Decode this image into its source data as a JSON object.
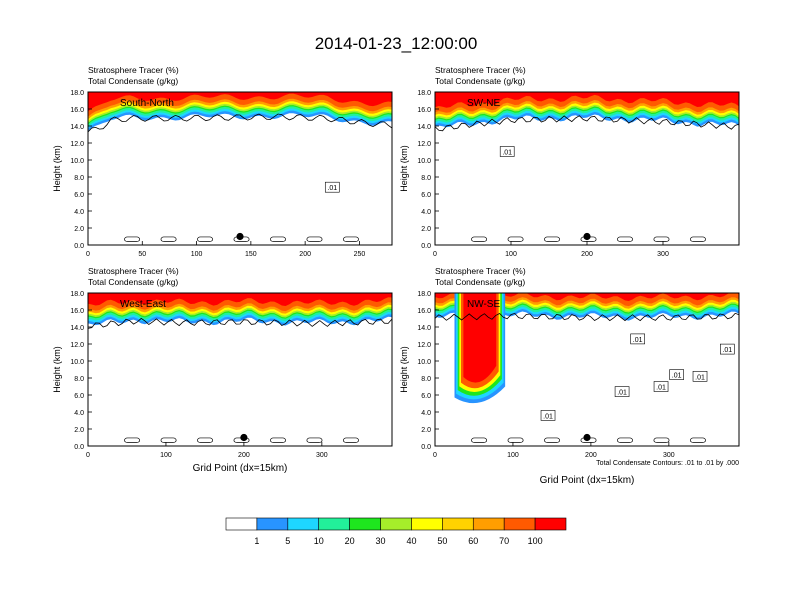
{
  "title": "2014-01-23_12:00:00",
  "colors": {
    "levels": [
      "#ffffff",
      "#2894ff",
      "#1ed6ff",
      "#22f09a",
      "#1ee61e",
      "#a6ee2a",
      "#ffff00",
      "#ffd200",
      "#ff9e00",
      "#ff5a00",
      "#ff0000"
    ],
    "contour": "#000000"
  },
  "chart_data": [
    {
      "type": "heatmap",
      "label": "South-North",
      "header": [
        "Stratosphere Tracer   (%)",
        "Total Condensate   (g/kg)"
      ],
      "ylabel": "Height (km)",
      "xlabel": "",
      "xlim": [
        0,
        280
      ],
      "xticks": [
        0,
        50,
        100,
        150,
        200,
        250
      ],
      "ylim": [
        0,
        18
      ],
      "yticks": [
        "0.0",
        "2.0",
        "4.0",
        "6.0",
        "8.0",
        "10.0",
        "12.0",
        "14.0",
        "16.0",
        "18.0"
      ],
      "tropopause_km": [
        [
          0,
          14.2
        ],
        [
          10,
          14.6
        ],
        [
          22,
          15.6
        ],
        [
          40,
          15.8
        ],
        [
          80,
          15.8
        ],
        [
          130,
          15.9
        ],
        [
          180,
          16.0
        ],
        [
          220,
          15.8
        ],
        [
          260,
          15.2
        ],
        [
          280,
          15.0
        ]
      ],
      "marker": [
        140,
        1.0
      ],
      "contour_labels": [
        {
          "text": ".01",
          "x": 225,
          "y": 6.8
        }
      ]
    },
    {
      "type": "heatmap",
      "label": "SW-NE",
      "header": [
        "Stratosphere Tracer   (%)",
        "Total Condensate   (g/kg)"
      ],
      "ylabel": "Height (km)",
      "xlabel": "",
      "xlim": [
        0,
        400
      ],
      "xticks": [
        0,
        100,
        200,
        300
      ],
      "ylim": [
        0,
        18
      ],
      "yticks": [
        "0.0",
        "2.0",
        "4.0",
        "6.0",
        "8.0",
        "10.0",
        "12.0",
        "14.0",
        "16.0",
        "18.0"
      ],
      "tropopause_km": [
        [
          0,
          14.5
        ],
        [
          40,
          15.0
        ],
        [
          100,
          15.6
        ],
        [
          200,
          15.8
        ],
        [
          300,
          15.4
        ],
        [
          400,
          14.8
        ]
      ],
      "marker": [
        200,
        1.0
      ],
      "contour_labels": [
        {
          "text": ".01",
          "x": 95,
          "y": 11.0
        }
      ]
    },
    {
      "type": "heatmap",
      "label": "West-East",
      "header": [
        "Stratosphere Tracer   (%)",
        "Total Condensate   (g/kg)"
      ],
      "ylabel": "Height (km)",
      "xlabel": "Grid Point (dx=15km)",
      "xlim": [
        0,
        390
      ],
      "xticks": [
        0,
        100,
        200,
        300
      ],
      "ylim": [
        0,
        18
      ],
      "yticks": [
        "0.0",
        "2.0",
        "4.0",
        "6.0",
        "8.0",
        "10.0",
        "12.0",
        "14.0",
        "16.0",
        "18.0"
      ],
      "tropopause_km": [
        [
          0,
          15.0
        ],
        [
          60,
          15.6
        ],
        [
          120,
          15.4
        ],
        [
          200,
          15.5
        ],
        [
          300,
          15.3
        ],
        [
          390,
          15.6
        ]
      ],
      "marker": [
        200,
        1.0
      ],
      "contour_labels": []
    },
    {
      "type": "heatmap",
      "label": "NW-SE",
      "header": [
        "Stratosphere Tracer   (%)",
        "Total Condensate   (g/kg)"
      ],
      "ylabel": "Height (km)",
      "xlabel": "Grid Point (dx=15km)",
      "footnote": "Total Condensate Contours: .01 to .01 by .000",
      "xlim": [
        0,
        390
      ],
      "xticks": [
        0,
        100,
        200,
        300
      ],
      "ylim": [
        0,
        18
      ],
      "yticks": [
        "0.0",
        "2.0",
        "4.0",
        "6.0",
        "8.0",
        "10.0",
        "12.0",
        "14.0",
        "16.0",
        "18.0"
      ],
      "tropopause_km": [
        [
          0,
          16.0
        ],
        [
          100,
          16.2
        ],
        [
          200,
          16.0
        ],
        [
          300,
          16.0
        ],
        [
          390,
          16.2
        ]
      ],
      "intrusion": {
        "x_from": 25,
        "x_to": 90,
        "bottom_km": 4.5
      },
      "marker": [
        195,
        1.0
      ],
      "contour_labels": [
        {
          "text": ".01",
          "x": 145,
          "y": 3.6
        },
        {
          "text": ".01",
          "x": 240,
          "y": 6.4
        },
        {
          "text": ".01",
          "x": 290,
          "y": 7.0
        },
        {
          "text": ".01",
          "x": 310,
          "y": 8.4
        },
        {
          "text": ".01",
          "x": 340,
          "y": 8.2
        },
        {
          "text": ".01",
          "x": 260,
          "y": 12.6
        },
        {
          "text": ".01",
          "x": 375,
          "y": 11.4
        }
      ]
    }
  ],
  "colorbar": {
    "labels": [
      "1",
      "5",
      "10",
      "20",
      "30",
      "40",
      "50",
      "60",
      "70",
      "100"
    ]
  }
}
